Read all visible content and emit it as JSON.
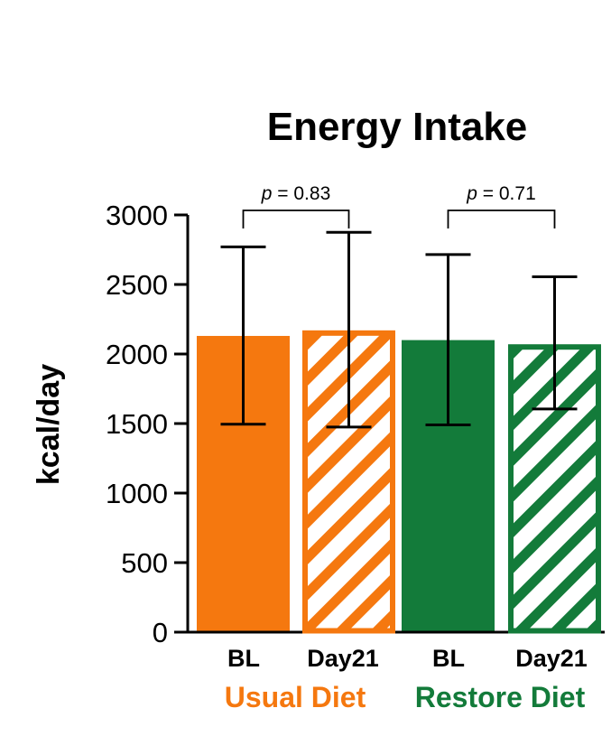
{
  "chart_data": {
    "type": "bar",
    "title": "Energy Intake",
    "ylabel": "kcal/day",
    "xlabel": "",
    "ylim": [
      0,
      3000
    ],
    "yticks": [
      0,
      500,
      1000,
      1500,
      2000,
      2500,
      3000
    ],
    "categories": [
      "BL",
      "Day21",
      "BL",
      "Day21"
    ],
    "values": [
      2130,
      2170,
      2100,
      2070
    ],
    "error_low": [
      1495,
      1475,
      1490,
      1605
    ],
    "error_high": [
      2770,
      2875,
      2715,
      2555
    ],
    "fill_style": [
      "solid",
      "hatched",
      "solid",
      "hatched"
    ],
    "groups": [
      {
        "name": "Usual Diet",
        "color": "#F5780F",
        "category_indices": [
          0,
          1
        ]
      },
      {
        "name": "Restore Diet",
        "color": "#137B3A",
        "category_indices": [
          2,
          3
        ]
      }
    ],
    "annotations": [
      {
        "label": "p = 0.83",
        "p_prefix": "p",
        "p_rest": " = 0.83",
        "between": [
          0,
          1
        ]
      },
      {
        "label": "p = 0.71",
        "p_prefix": "p",
        "p_rest": " = 0.71",
        "between": [
          2,
          3
        ]
      }
    ],
    "grid": false
  }
}
